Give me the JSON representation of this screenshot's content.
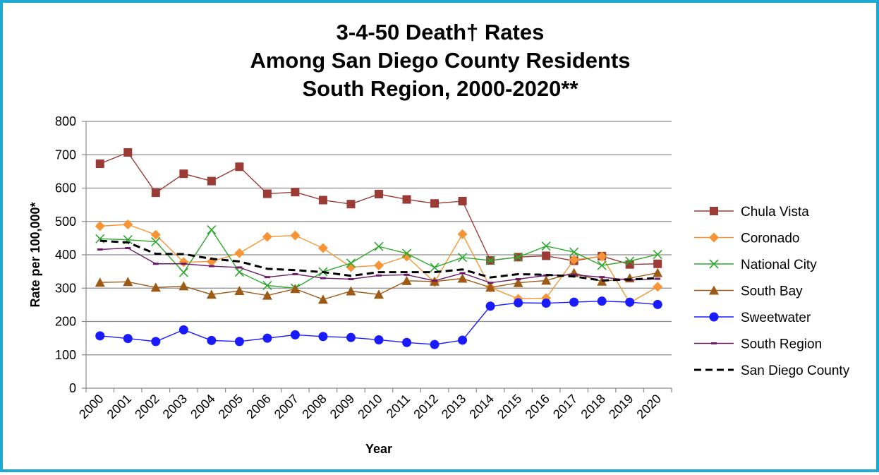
{
  "chart_data": {
    "type": "line",
    "title_lines": [
      "3-4-50 Death† Rates",
      "Among San Diego County Residents",
      "South Region, 2000-2020**"
    ],
    "xlabel": "Year",
    "ylabel": "Rate per 100,000*",
    "ylim": [
      0,
      800
    ],
    "yticks": [
      0,
      100,
      200,
      300,
      400,
      500,
      600,
      700,
      800
    ],
    "grid": true,
    "legend_position": "right",
    "categories": [
      "2000",
      "2001",
      "2002",
      "2003",
      "2004",
      "2005",
      "2006",
      "2007",
      "2008",
      "2009",
      "2010",
      "2011",
      "2012",
      "2013",
      "2014",
      "2015",
      "2016",
      "2017",
      "2018",
      "2019",
      "2020"
    ],
    "series": [
      {
        "name": "Chula Vista",
        "color": "#9b3b36",
        "marker": "square",
        "dashed": false,
        "values": [
          673,
          707,
          586,
          643,
          621,
          664,
          583,
          588,
          564,
          552,
          582,
          566,
          554,
          561,
          383,
          393,
          397,
          382,
          396,
          371,
          373
        ]
      },
      {
        "name": "Coronado",
        "color": "#f79536",
        "marker": "diamond",
        "dashed": false,
        "values": [
          486,
          491,
          460,
          378,
          380,
          405,
          454,
          458,
          420,
          363,
          368,
          395,
          318,
          462,
          302,
          268,
          270,
          385,
          395,
          256,
          304
        ]
      },
      {
        "name": "National City",
        "color": "#2ea82e",
        "marker": "x",
        "dashed": false,
        "values": [
          448,
          445,
          439,
          347,
          475,
          348,
          308,
          300,
          349,
          375,
          425,
          404,
          362,
          392,
          383,
          393,
          426,
          408,
          368,
          381,
          401
        ]
      },
      {
        "name": "South Bay",
        "color": "#9c5a16",
        "marker": "triangle",
        "dashed": false,
        "values": [
          317,
          319,
          302,
          306,
          281,
          292,
          278,
          298,
          266,
          291,
          281,
          322,
          320,
          329,
          302,
          316,
          323,
          346,
          320,
          330,
          346
        ]
      },
      {
        "name": "Sweetwater",
        "color": "#1a1aff",
        "marker": "circle",
        "dashed": false,
        "values": [
          157,
          149,
          140,
          175,
          143,
          140,
          150,
          160,
          155,
          152,
          145,
          137,
          131,
          144,
          246,
          256,
          255,
          258,
          261,
          258,
          251
        ]
      },
      {
        "name": "South Region",
        "color": "#6b1a6b",
        "marker": "dash",
        "dashed": false,
        "values": [
          416,
          420,
          373,
          373,
          366,
          362,
          333,
          342,
          330,
          327,
          338,
          340,
          322,
          345,
          316,
          327,
          338,
          340,
          333,
          324,
          328
        ]
      },
      {
        "name": "San Diego County",
        "color": "#000000",
        "marker": "none",
        "dashed": true,
        "values": [
          442,
          437,
          403,
          402,
          388,
          380,
          358,
          354,
          348,
          337,
          348,
          348,
          348,
          356,
          332,
          342,
          340,
          335,
          323,
          326,
          330
        ]
      }
    ]
  }
}
